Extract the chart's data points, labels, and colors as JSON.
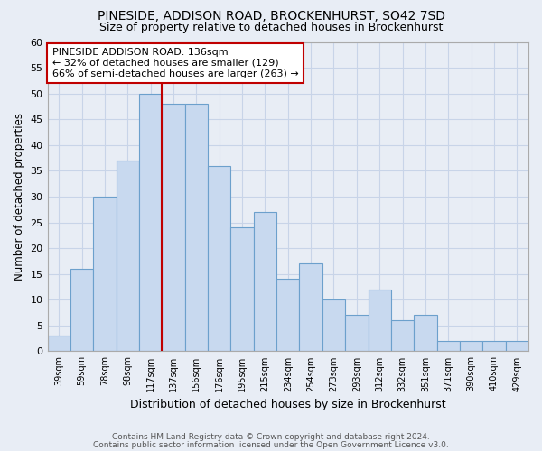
{
  "title1": "PINESIDE, ADDISON ROAD, BROCKENHURST, SO42 7SD",
  "title2": "Size of property relative to detached houses in Brockenhurst",
  "xlabel": "Distribution of detached houses by size in Brockenhurst",
  "ylabel": "Number of detached properties",
  "bar_labels": [
    "39sqm",
    "59sqm",
    "78sqm",
    "98sqm",
    "117sqm",
    "137sqm",
    "156sqm",
    "176sqm",
    "195sqm",
    "215sqm",
    "234sqm",
    "254sqm",
    "273sqm",
    "293sqm",
    "312sqm",
    "332sqm",
    "351sqm",
    "371sqm",
    "390sqm",
    "410sqm",
    "429sqm"
  ],
  "bar_values": [
    3,
    16,
    30,
    37,
    50,
    48,
    48,
    36,
    24,
    27,
    14,
    17,
    10,
    7,
    12,
    6,
    7,
    2,
    2,
    2,
    2
  ],
  "bar_color": "#c8d9ef",
  "bar_edge_color": "#6ca0cc",
  "highlight_x_label": "137sqm",
  "highlight_line_color": "#c00000",
  "annotation_text": "PINESIDE ADDISON ROAD: 136sqm\n← 32% of detached houses are smaller (129)\n66% of semi-detached houses are larger (263) →",
  "annotation_box_color": "white",
  "annotation_box_edge_color": "#c00000",
  "ylim": [
    0,
    60
  ],
  "yticks": [
    0,
    5,
    10,
    15,
    20,
    25,
    30,
    35,
    40,
    45,
    50,
    55,
    60
  ],
  "grid_color": "#c8d4e8",
  "footer1": "Contains HM Land Registry data © Crown copyright and database right 2024.",
  "footer2": "Contains public sector information licensed under the Open Government Licence v3.0.",
  "bg_color": "#e8edf5",
  "plot_bg_color": "#e8edf5"
}
